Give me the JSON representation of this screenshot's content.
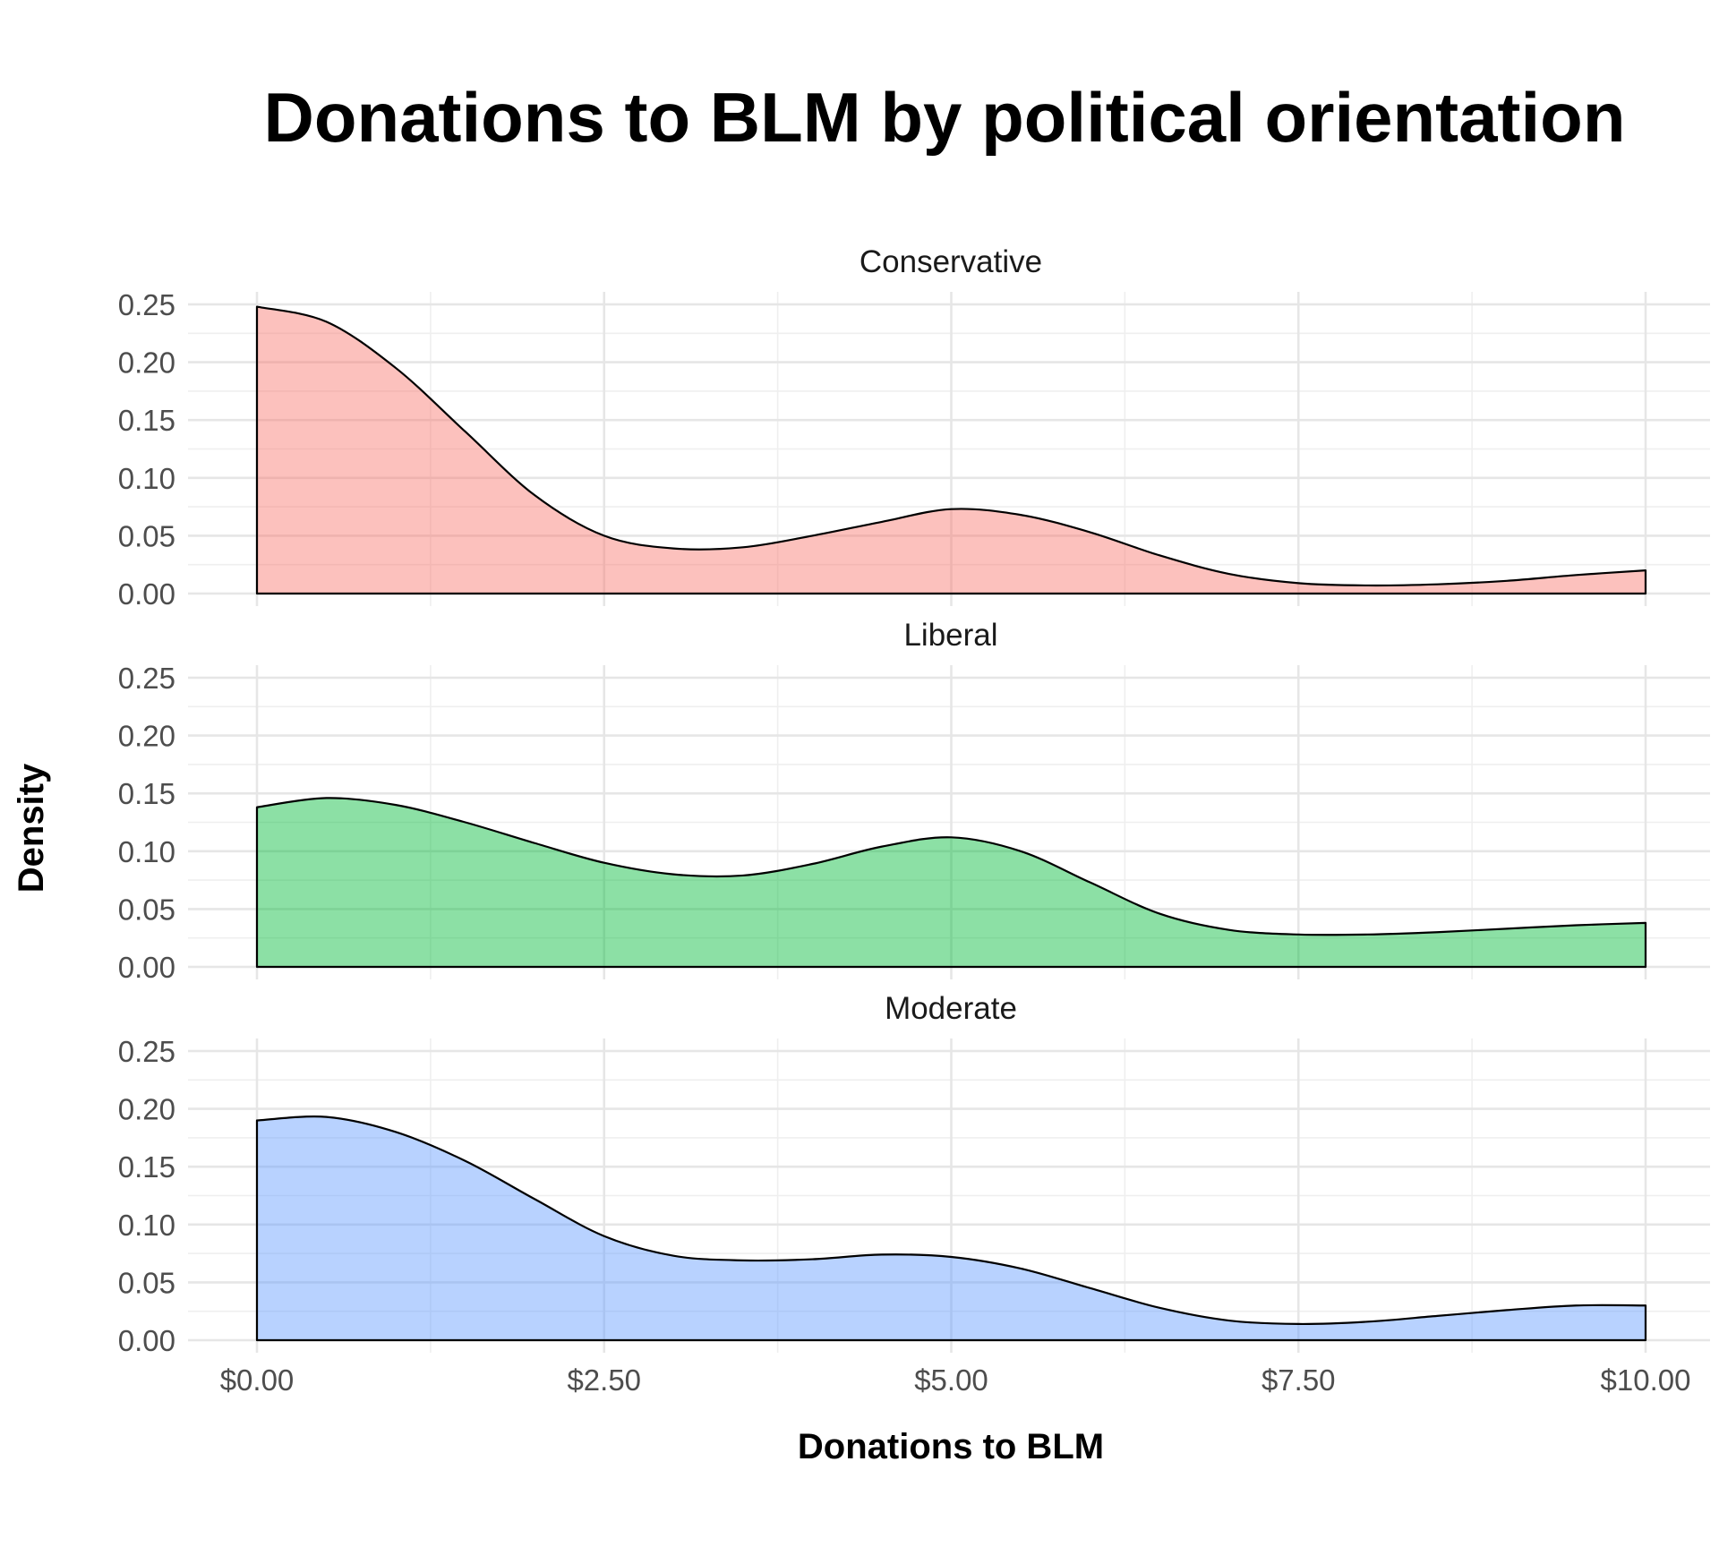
{
  "chart_data": {
    "type": "area",
    "title": "Donations to BLM by political orientation",
    "xlabel": "Donations to BLM",
    "ylabel": "Density",
    "xlim": [
      0,
      10
    ],
    "ylim": [
      0,
      0.25
    ],
    "x_ticks": [
      0,
      2.5,
      5,
      7.5,
      10
    ],
    "x_tick_labels": [
      "$0.00",
      "$2.50",
      "$5.00",
      "$7.50",
      "$10.00"
    ],
    "y_ticks": [
      0,
      0.05,
      0.1,
      0.15,
      0.2,
      0.25
    ],
    "y_tick_labels": [
      "0.00",
      "0.05",
      "0.10",
      "0.15",
      "0.20",
      "0.25"
    ],
    "grid": true,
    "legend": "none",
    "x": [
      0,
      0.5,
      1,
      1.5,
      2,
      2.5,
      3,
      3.5,
      4,
      4.5,
      5,
      5.5,
      6,
      6.5,
      7,
      7.5,
      8,
      8.5,
      9,
      9.5,
      10
    ],
    "series": [
      {
        "name": "Conservative",
        "color": "#F8766D",
        "values": [
          0.248,
          0.235,
          0.195,
          0.14,
          0.085,
          0.05,
          0.039,
          0.04,
          0.05,
          0.062,
          0.073,
          0.068,
          0.053,
          0.033,
          0.017,
          0.009,
          0.007,
          0.008,
          0.011,
          0.016,
          0.02
        ]
      },
      {
        "name": "Liberal",
        "color": "#00BA38",
        "values": [
          0.138,
          0.146,
          0.14,
          0.125,
          0.107,
          0.09,
          0.08,
          0.079,
          0.089,
          0.104,
          0.112,
          0.1,
          0.073,
          0.046,
          0.032,
          0.028,
          0.028,
          0.03,
          0.033,
          0.036,
          0.038
        ]
      },
      {
        "name": "Moderate",
        "color": "#619CFF",
        "values": [
          0.19,
          0.193,
          0.18,
          0.155,
          0.122,
          0.09,
          0.073,
          0.069,
          0.07,
          0.074,
          0.072,
          0.062,
          0.045,
          0.028,
          0.017,
          0.014,
          0.016,
          0.021,
          0.026,
          0.03,
          0.03
        ]
      }
    ]
  }
}
